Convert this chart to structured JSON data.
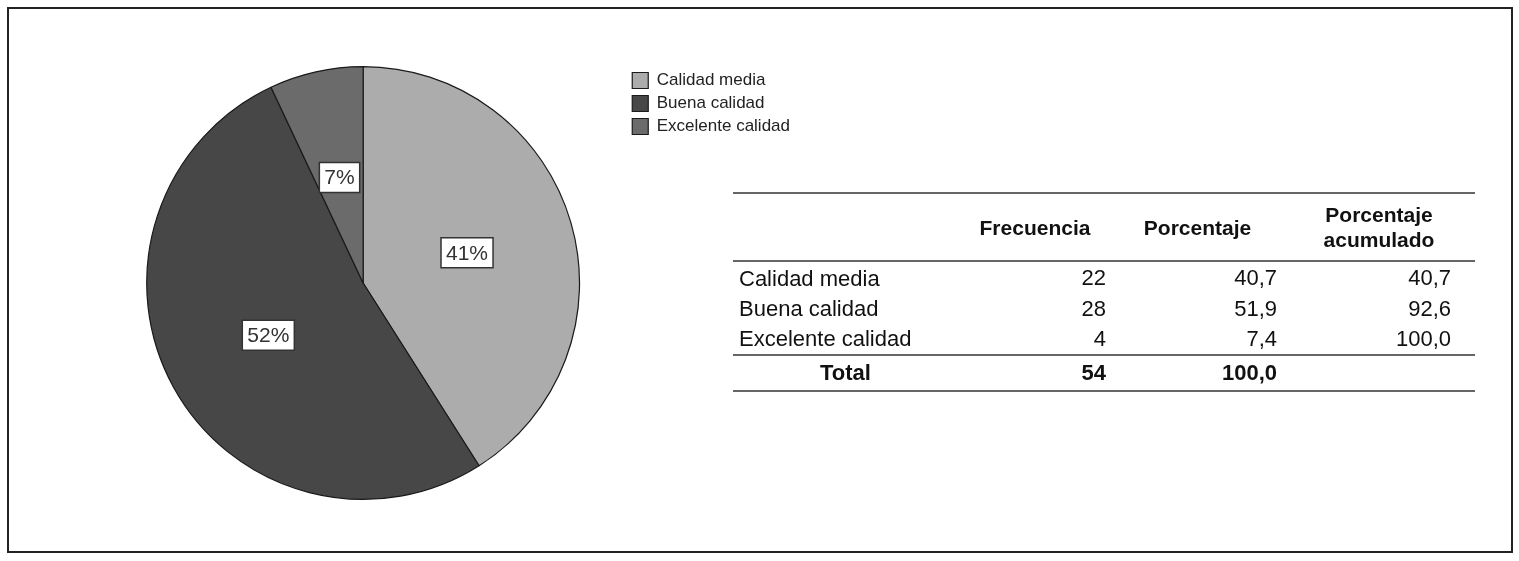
{
  "chart_data": [
    {
      "type": "pie",
      "categories": [
        "Calidad media",
        "Buena calidad",
        "Excelente calidad"
      ],
      "values": [
        41,
        52,
        7
      ],
      "colors": [
        "#acacac",
        "#474747",
        "#6b6b6b"
      ],
      "value_labels": [
        "41%",
        "52%",
        "7%"
      ],
      "legend": "top right"
    },
    {
      "type": "other",
      "categories": [
        "Calidad media",
        "Buena calidad",
        "Excelente calidad"
      ],
      "series": [
        {
          "name": "Frecuencia",
          "values": [
            22,
            28,
            4
          ],
          "value_labels": [
            "22",
            "28",
            "4"
          ]
        },
        {
          "name": "Porcentaje",
          "values": [
            40.7,
            51.9,
            7.4
          ],
          "value_labels": [
            "40,7",
            "51,9",
            "7,4"
          ]
        },
        {
          "name": "Porcentaje acumulado",
          "values": [
            40.7,
            92.6,
            100.0
          ],
          "value_labels": [
            "40,7",
            "92,6",
            "100,0"
          ]
        }
      ],
      "totals": [
        "54",
        "100,0",
        null
      ],
      "annotations": [
        "Total"
      ]
    }
  ]
}
